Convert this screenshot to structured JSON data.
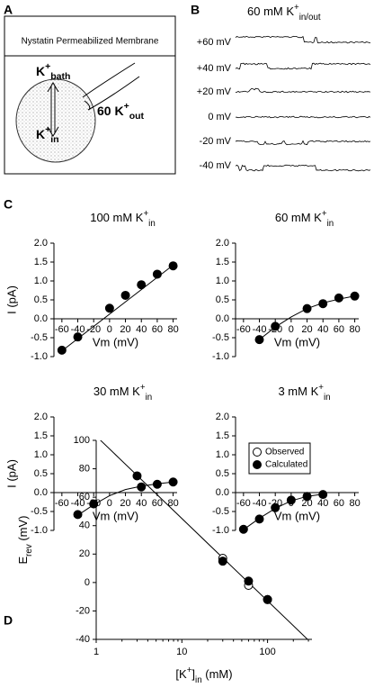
{
  "panel_labels": [
    "A",
    "B",
    "C",
    "D"
  ],
  "panel_a": {
    "header": "Nystatin Permeabilized Membrane",
    "bath": [
      {
        "t": "K"
      },
      {
        "t": "+",
        "pos": "sup"
      },
      {
        "t": "bath",
        "pos": "sub"
      }
    ],
    "in": [
      {
        "t": "K"
      },
      {
        "t": "+",
        "pos": "sup"
      },
      {
        "t": "in",
        "pos": "sub"
      }
    ],
    "out": [
      {
        "t": "60 K"
      },
      {
        "t": "+",
        "pos": "sup"
      },
      {
        "t": "out",
        "pos": "sub"
      }
    ]
  },
  "panel_b": {
    "title": [
      {
        "t": "60 mM K"
      },
      {
        "t": "+",
        "pos": "sup"
      },
      {
        "t": "in/out",
        "pos": "sub"
      }
    ],
    "traces": [
      "+60 mV",
      "+40 mV",
      "+20 mV",
      "0 mV",
      "-20 mV",
      "-40 mV"
    ]
  },
  "chart_data": [
    {
      "type": "scatter",
      "title": [
        {
          "t": "100 mM K"
        },
        {
          "t": "+",
          "pos": "sup"
        },
        {
          "t": "in",
          "pos": "sub"
        }
      ],
      "y_label": "I (pA)",
      "x_label": "Vm (mV)",
      "x_axis_at_zero": true,
      "xlim": [
        -70,
        85
      ],
      "xticks": [
        -60,
        -40,
        -20,
        0,
        20,
        40,
        60,
        80
      ],
      "ylim": [
        -1,
        2
      ],
      "yticks": [
        {
          "value": -1,
          "label": "-1.0"
        },
        {
          "value": -0.5,
          "label": "-0.5"
        },
        {
          "value": 0,
          "label": "0.0"
        },
        {
          "value": 0.5,
          "label": "0.5"
        },
        {
          "value": 1,
          "label": "1.0"
        },
        {
          "value": 1.5,
          "label": "1.5"
        },
        {
          "value": 2,
          "label": "2.0"
        }
      ],
      "series": [
        {
          "x": [
            -60,
            -40,
            0,
            20,
            40,
            60,
            80
          ],
          "values": [
            -0.83,
            -0.48,
            0.28,
            0.62,
            0.9,
            1.18,
            1.4
          ],
          "color": "#000000",
          "marker": "filled"
        }
      ],
      "fit": {
        "x": [
          -62,
          80
        ],
        "values": [
          -0.88,
          1.42
        ]
      }
    },
    {
      "type": "scatter",
      "title": [
        {
          "t": "60 mM K"
        },
        {
          "t": "+",
          "pos": "sup"
        },
        {
          "t": "in",
          "pos": "sub"
        }
      ],
      "x_label": "Vm (mV)",
      "x_axis_at_zero": true,
      "xlim": [
        -70,
        85
      ],
      "xticks": [
        -60,
        -40,
        -20,
        0,
        20,
        40,
        60,
        80
      ],
      "ylim": [
        -1,
        2
      ],
      "yticks": [
        {
          "value": -1,
          "label": "-1.0"
        },
        {
          "value": -0.5,
          "label": "-0.5"
        },
        {
          "value": 0,
          "label": "0.0"
        },
        {
          "value": 0.5,
          "label": "0.5"
        },
        {
          "value": 1,
          "label": "1.0"
        },
        {
          "value": 1.5,
          "label": "1.5"
        },
        {
          "value": 2,
          "label": "2.0"
        }
      ],
      "series": [
        {
          "x": [
            -40,
            -20,
            20,
            40,
            60,
            80
          ],
          "values": [
            -0.55,
            -0.2,
            0.27,
            0.4,
            0.55,
            0.6
          ],
          "color": "#000000",
          "marker": "filled"
        }
      ],
      "fit": {
        "x": [
          -40,
          -20,
          0,
          20,
          40,
          60,
          80
        ],
        "values": [
          -0.55,
          -0.22,
          0.05,
          0.27,
          0.42,
          0.52,
          0.6
        ]
      }
    },
    {
      "type": "scatter",
      "title": [
        {
          "t": "30 mM K"
        },
        {
          "t": "+",
          "pos": "sup"
        },
        {
          "t": "in",
          "pos": "sub"
        }
      ],
      "y_label": "I (pA)",
      "x_label": "Vm (mV)",
      "x_axis_at_zero": true,
      "xlim": [
        -70,
        85
      ],
      "xticks": [
        -60,
        -40,
        -20,
        0,
        20,
        40,
        60,
        80
      ],
      "ylim": [
        -1,
        2
      ],
      "yticks": [
        {
          "value": -1,
          "label": "-1.0"
        },
        {
          "value": -0.5,
          "label": "-0.5"
        },
        {
          "value": 0,
          "label": "0.0"
        },
        {
          "value": 0.5,
          "label": "0.5"
        },
        {
          "value": 1,
          "label": "1.0"
        },
        {
          "value": 1.5,
          "label": "1.5"
        },
        {
          "value": 2,
          "label": "2.0"
        }
      ],
      "series": [
        {
          "x": [
            -40,
            -20,
            40,
            60,
            80
          ],
          "values": [
            -0.58,
            -0.3,
            0.15,
            0.22,
            0.28
          ],
          "color": "#000000",
          "marker": "filled"
        }
      ],
      "fit": {
        "x": [
          -40,
          -20,
          0,
          20,
          40,
          60,
          80
        ],
        "values": [
          -0.6,
          -0.32,
          -0.08,
          0.08,
          0.17,
          0.23,
          0.28
        ]
      }
    },
    {
      "type": "scatter",
      "title": [
        {
          "t": "3 mM K"
        },
        {
          "t": "+",
          "pos": "sup"
        },
        {
          "t": "in",
          "pos": "sub"
        }
      ],
      "x_label": "Vm (mV)",
      "x_axis_at_zero": true,
      "xlim": [
        -70,
        85
      ],
      "xticks": [
        -60,
        -40,
        -20,
        0,
        20,
        40,
        60,
        80
      ],
      "ylim": [
        -1,
        2
      ],
      "yticks": [
        {
          "value": -1,
          "label": "-1.0"
        },
        {
          "value": -0.5,
          "label": "-0.5"
        },
        {
          "value": 0,
          "label": "0.0"
        },
        {
          "value": 0.5,
          "label": "0.5"
        },
        {
          "value": 1,
          "label": "1.0"
        },
        {
          "value": 1.5,
          "label": "1.5"
        },
        {
          "value": 2,
          "label": "2.0"
        }
      ],
      "series": [
        {
          "x": [
            -60,
            -40,
            -20,
            0,
            20,
            40
          ],
          "values": [
            -0.97,
            -0.7,
            -0.4,
            -0.2,
            -0.1,
            -0.05
          ],
          "color": "#000000",
          "marker": "filled"
        }
      ],
      "fit": {
        "x": [
          -60,
          -40,
          -20,
          0,
          20,
          40
        ],
        "values": [
          -0.98,
          -0.68,
          -0.42,
          -0.22,
          -0.1,
          -0.04
        ]
      }
    },
    {
      "type": "scatter",
      "log_x": true,
      "y_label": [
        {
          "t": "E"
        },
        {
          "t": "rev",
          "pos": "sub"
        },
        {
          "t": " (mV)"
        }
      ],
      "x_label": [
        {
          "t": "[K"
        },
        {
          "t": "+",
          "pos": "sup"
        },
        {
          "t": "]"
        },
        {
          "t": "in",
          "pos": "sub"
        },
        {
          "t": "  (mM)"
        }
      ],
      "xlim": [
        1,
        330
      ],
      "xticks": [
        1,
        10,
        100
      ],
      "minor_xticks": [
        2,
        3,
        4,
        5,
        6,
        7,
        8,
        9,
        20,
        30,
        40,
        50,
        60,
        70,
        80,
        90,
        200,
        300
      ],
      "ylim": [
        -40,
        100
      ],
      "yticks": [
        -40,
        -20,
        0,
        20,
        40,
        60,
        80,
        100
      ],
      "legend": "upper right",
      "series": [
        {
          "name": "Observed",
          "x": [
            30,
            60,
            100
          ],
          "values": [
            17,
            -2,
            -12
          ],
          "color": "#000000",
          "marker": "open"
        },
        {
          "name": "Calculated",
          "x": [
            3,
            30,
            60,
            100
          ],
          "values": [
            75,
            15,
            1,
            -12
          ],
          "color": "#000000",
          "marker": "filled"
        }
      ],
      "fit": {
        "x": [
          1,
          330
        ],
        "values": [
          103,
          -43
        ]
      }
    }
  ]
}
